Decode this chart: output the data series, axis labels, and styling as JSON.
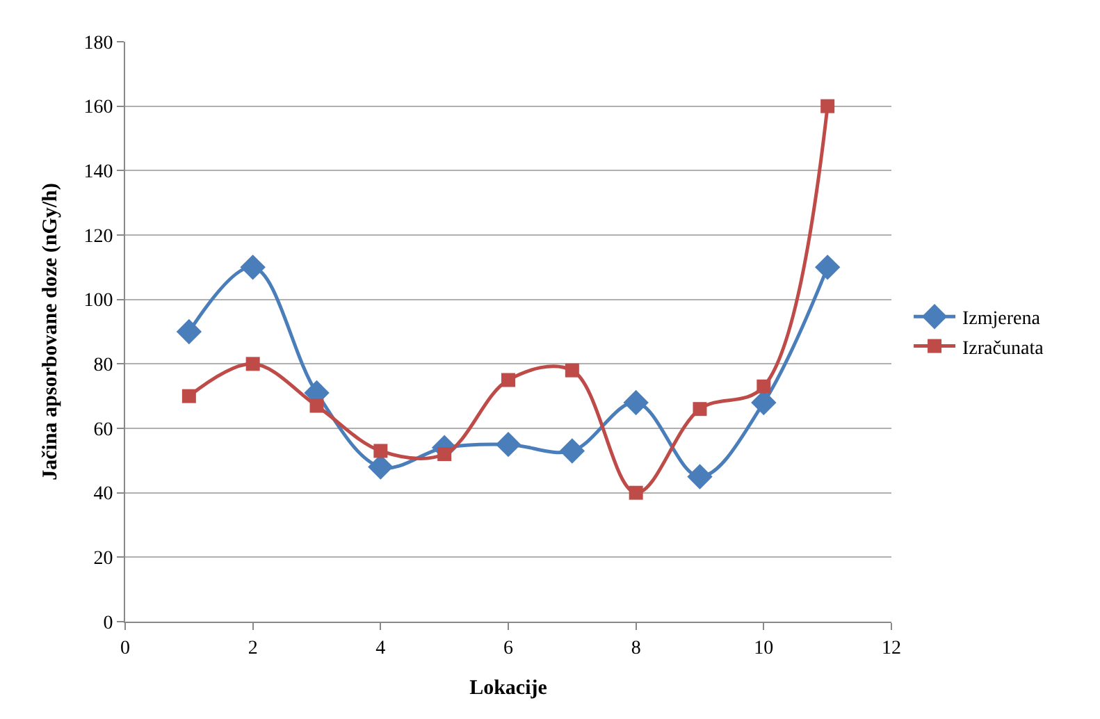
{
  "chart_data": {
    "type": "line",
    "xlabel": "Lokacije",
    "ylabel": "Jačina apsorbovane doze (nGy/h)",
    "x": [
      1,
      2,
      3,
      4,
      5,
      6,
      7,
      8,
      9,
      10,
      11
    ],
    "xlim": [
      0,
      12
    ],
    "xticks": [
      0,
      2,
      4,
      6,
      8,
      10,
      12
    ],
    "ylim": [
      0,
      180
    ],
    "yticks": [
      0,
      20,
      40,
      60,
      80,
      100,
      120,
      140,
      160,
      180
    ],
    "grid": "y",
    "legend": "right",
    "series": [
      {
        "name": "Izmjerena",
        "color": "#4a7ebb",
        "marker": "diamond",
        "values": [
          90,
          110,
          71,
          48,
          54,
          55,
          53,
          68,
          45,
          68,
          110
        ]
      },
      {
        "name": "Izračunata",
        "color": "#be4b48",
        "marker": "square",
        "values": [
          70,
          80,
          67,
          53,
          52,
          75,
          78,
          40,
          66,
          73,
          160
        ]
      }
    ]
  }
}
